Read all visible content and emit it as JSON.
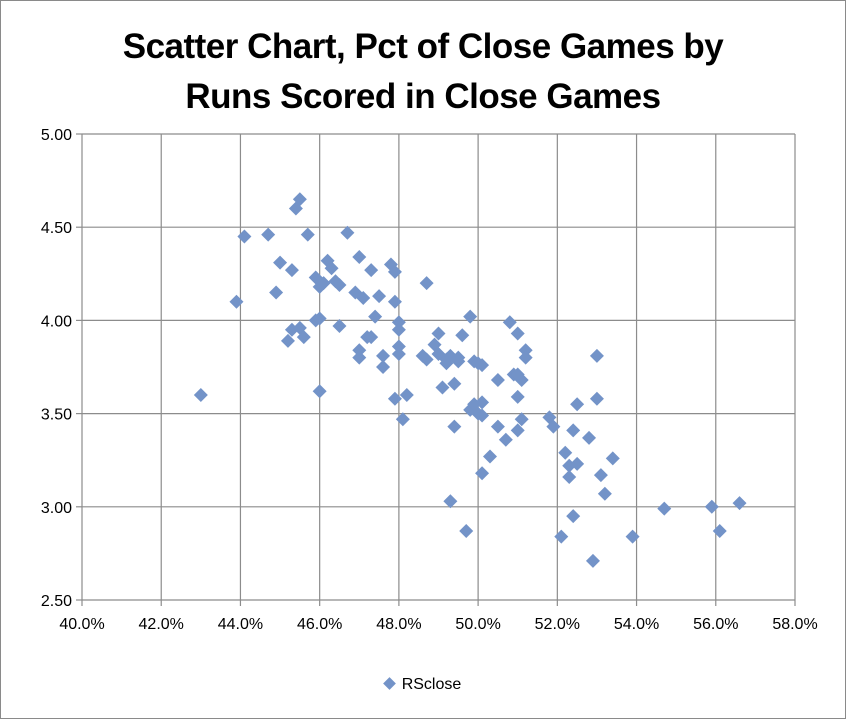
{
  "chart_data": {
    "type": "scatter",
    "title_lines": [
      "Scatter Chart, Pct of Close Games by",
      "Runs Scored in Close Games"
    ],
    "xlabel": "",
    "ylabel": "",
    "xlim": [
      0.4,
      0.58
    ],
    "ylim": [
      2.5,
      5.0
    ],
    "x_ticks": [
      0.4,
      0.42,
      0.44,
      0.46,
      0.48,
      0.5,
      0.52,
      0.54,
      0.56,
      0.58
    ],
    "x_tick_labels": [
      "40.0%",
      "42.0%",
      "44.0%",
      "46.0%",
      "48.0%",
      "50.0%",
      "52.0%",
      "54.0%",
      "56.0%",
      "58.0%"
    ],
    "y_ticks": [
      2.5,
      3.0,
      3.5,
      4.0,
      4.5,
      5.0
    ],
    "y_tick_labels": [
      "2.50",
      "3.00",
      "3.50",
      "4.00",
      "4.50",
      "5.00"
    ],
    "grid": true,
    "legend_position": "bottom",
    "marker_color": "#7393c8",
    "series": [
      {
        "name": "RSclose",
        "points": [
          [
            0.43,
            3.6
          ],
          [
            0.439,
            4.1
          ],
          [
            0.441,
            4.45
          ],
          [
            0.447,
            4.46
          ],
          [
            0.449,
            4.15
          ],
          [
            0.45,
            4.31
          ],
          [
            0.452,
            3.89
          ],
          [
            0.453,
            4.27
          ],
          [
            0.453,
            3.95
          ],
          [
            0.454,
            4.6
          ],
          [
            0.455,
            4.65
          ],
          [
            0.455,
            3.96
          ],
          [
            0.456,
            3.91
          ],
          [
            0.457,
            4.46
          ],
          [
            0.459,
            4.23
          ],
          [
            0.459,
            4.0
          ],
          [
            0.46,
            4.18
          ],
          [
            0.46,
            4.01
          ],
          [
            0.46,
            3.62
          ],
          [
            0.461,
            4.2
          ],
          [
            0.462,
            4.32
          ],
          [
            0.463,
            4.28
          ],
          [
            0.464,
            4.21
          ],
          [
            0.465,
            4.19
          ],
          [
            0.465,
            3.97
          ],
          [
            0.467,
            4.47
          ],
          [
            0.469,
            4.15
          ],
          [
            0.47,
            4.34
          ],
          [
            0.47,
            3.84
          ],
          [
            0.47,
            3.8
          ],
          [
            0.471,
            4.12
          ],
          [
            0.472,
            3.91
          ],
          [
            0.473,
            4.27
          ],
          [
            0.473,
            3.91
          ],
          [
            0.474,
            4.02
          ],
          [
            0.475,
            4.13
          ],
          [
            0.476,
            3.81
          ],
          [
            0.476,
            3.75
          ],
          [
            0.478,
            4.3
          ],
          [
            0.479,
            4.26
          ],
          [
            0.479,
            4.1
          ],
          [
            0.479,
            3.58
          ],
          [
            0.48,
            3.99
          ],
          [
            0.48,
            3.95
          ],
          [
            0.48,
            3.86
          ],
          [
            0.48,
            3.82
          ],
          [
            0.481,
            3.47
          ],
          [
            0.482,
            3.6
          ],
          [
            0.486,
            3.81
          ],
          [
            0.487,
            3.79
          ],
          [
            0.487,
            4.2
          ],
          [
            0.489,
            3.87
          ],
          [
            0.49,
            3.93
          ],
          [
            0.49,
            3.82
          ],
          [
            0.491,
            3.64
          ],
          [
            0.492,
            3.79
          ],
          [
            0.492,
            3.77
          ],
          [
            0.493,
            3.81
          ],
          [
            0.493,
            3.03
          ],
          [
            0.494,
            3.43
          ],
          [
            0.494,
            3.66
          ],
          [
            0.495,
            3.8
          ],
          [
            0.495,
            3.78
          ],
          [
            0.496,
            3.92
          ],
          [
            0.497,
            2.87
          ],
          [
            0.498,
            4.02
          ],
          [
            0.498,
            3.52
          ],
          [
            0.499,
            3.78
          ],
          [
            0.499,
            3.55
          ],
          [
            0.5,
            3.5
          ],
          [
            0.5,
            3.77
          ],
          [
            0.501,
            3.56
          ],
          [
            0.501,
            3.49
          ],
          [
            0.501,
            3.76
          ],
          [
            0.501,
            3.18
          ],
          [
            0.503,
            3.27
          ],
          [
            0.505,
            3.43
          ],
          [
            0.505,
            3.68
          ],
          [
            0.507,
            3.36
          ],
          [
            0.508,
            3.99
          ],
          [
            0.509,
            3.71
          ],
          [
            0.51,
            3.93
          ],
          [
            0.51,
            3.71
          ],
          [
            0.51,
            3.59
          ],
          [
            0.51,
            3.41
          ],
          [
            0.511,
            3.47
          ],
          [
            0.511,
            3.68
          ],
          [
            0.512,
            3.84
          ],
          [
            0.512,
            3.8
          ],
          [
            0.518,
            3.48
          ],
          [
            0.519,
            3.43
          ],
          [
            0.521,
            2.84
          ],
          [
            0.522,
            3.29
          ],
          [
            0.523,
            3.22
          ],
          [
            0.523,
            3.16
          ],
          [
            0.524,
            3.41
          ],
          [
            0.524,
            2.95
          ],
          [
            0.525,
            3.55
          ],
          [
            0.525,
            3.23
          ],
          [
            0.528,
            3.37
          ],
          [
            0.529,
            2.71
          ],
          [
            0.53,
            3.81
          ],
          [
            0.53,
            3.58
          ],
          [
            0.531,
            3.17
          ],
          [
            0.532,
            3.07
          ],
          [
            0.534,
            3.26
          ],
          [
            0.539,
            2.84
          ],
          [
            0.547,
            2.99
          ],
          [
            0.559,
            3.0
          ],
          [
            0.561,
            2.87
          ],
          [
            0.566,
            3.02
          ]
        ]
      }
    ]
  }
}
